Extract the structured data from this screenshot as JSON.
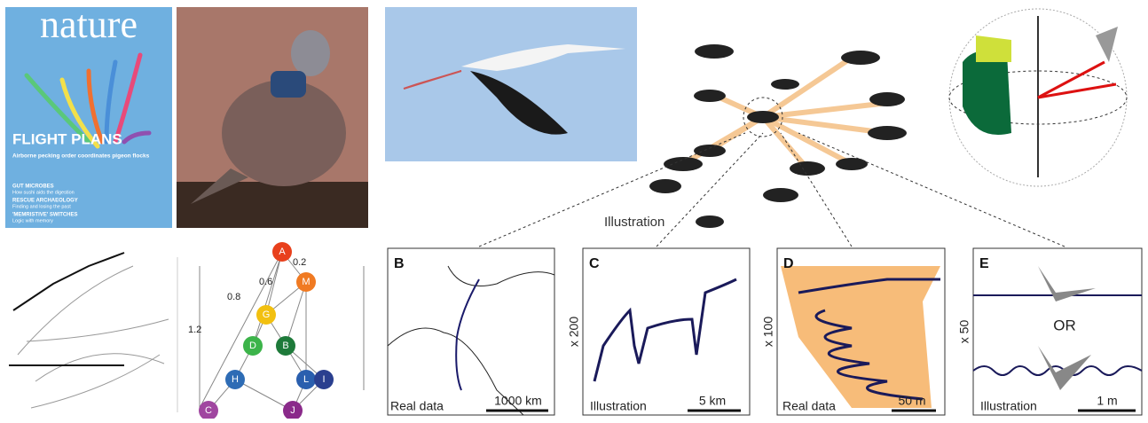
{
  "cover": {
    "masthead": "nature",
    "headline": "FLIGHT PLANS",
    "subhead": "Airborne pecking order coordinates pigeon flocks",
    "items": [
      {
        "title": "GUT MICROBES",
        "text": "How sushi aids the digestion"
      },
      {
        "title": "RESCUE ARCHAEOLOGY",
        "text": "Finding and losing the past"
      },
      {
        "title": "'MEMRISTIVE' SWITCHES",
        "text": "Logic with memory"
      }
    ]
  },
  "flock_label": "Illustration",
  "network": {
    "nodes": [
      "A",
      "M",
      "G",
      "D",
      "B",
      "H",
      "L",
      "I",
      "C",
      "J"
    ],
    "edge_labels": [
      "0.2",
      "0.6",
      "0.8",
      "1.2"
    ]
  },
  "panels": [
    {
      "letter": "B",
      "caption": "Real data",
      "scale": "1000 km"
    },
    {
      "letter": "C",
      "caption": "Illustration",
      "scale": "5 km",
      "zoom": "x 200"
    },
    {
      "letter": "D",
      "caption": "Real data",
      "scale": "50 m",
      "zoom": "x 100"
    },
    {
      "letter": "E",
      "caption": "Illustration",
      "scale": "1 m",
      "zoom": "x 50",
      "middle": "OR"
    }
  ]
}
